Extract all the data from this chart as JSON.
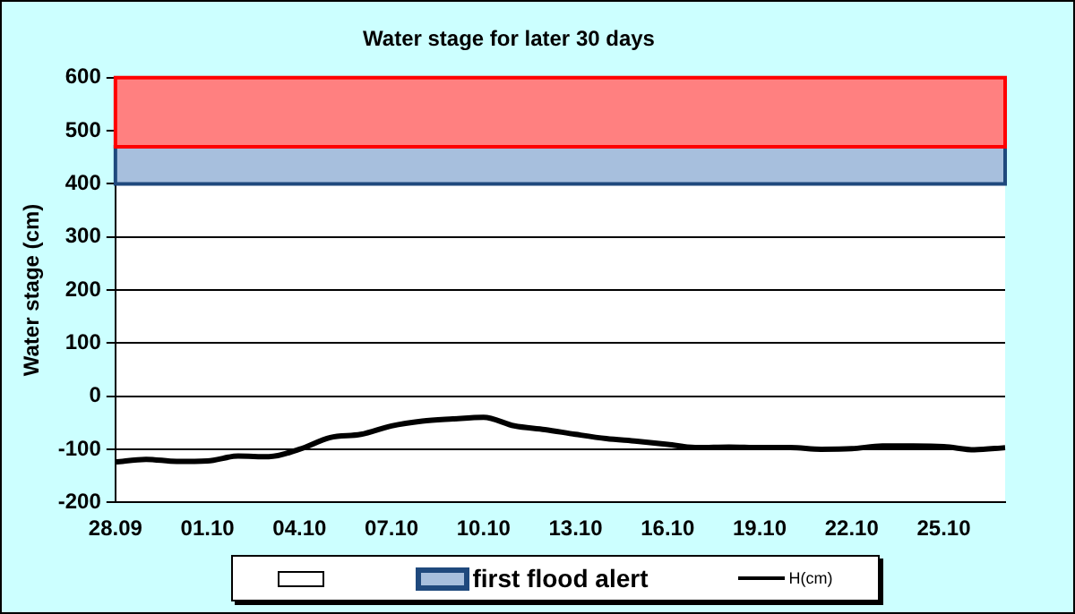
{
  "chart_data": {
    "type": "line",
    "title": "Water stage for later 30 days",
    "ylabel": "Water stage (cm)",
    "categories": [
      "28.09",
      null,
      null,
      "01.10",
      null,
      null,
      "04.10",
      null,
      null,
      "07.10",
      null,
      null,
      "10.10",
      null,
      null,
      "13.10",
      null,
      null,
      "16.10",
      null,
      null,
      "19.10",
      null,
      null,
      "22.10",
      null,
      null,
      "25.10",
      null,
      null
    ],
    "series": [
      {
        "name": "H(cm)",
        "color": "#000000",
        "values": [
          -124,
          -119,
          -123,
          -122,
          -113,
          -114,
          -100,
          -78,
          -72,
          -56,
          -47,
          -43,
          -40,
          -56,
          -63,
          -72,
          -80,
          -85,
          -91,
          -97,
          -96,
          -97,
          -97,
          -100,
          -99,
          -94,
          -94,
          -95,
          -101,
          -97
        ]
      }
    ],
    "ylim": [
      -200,
      600
    ],
    "yticks": [
      -200,
      -100,
      0,
      100,
      200,
      300,
      400,
      500,
      600
    ],
    "bands": [
      {
        "axis": "y",
        "from": 400,
        "to": 470,
        "label": "first flood alert",
        "color": "#a7bfdd"
      },
      {
        "axis": "y",
        "from": 470,
        "to": 600,
        "color": "#ff8080"
      }
    ],
    "grid": "y",
    "legend": "bottom",
    "marker": "none",
    "line_style": "solid"
  }
}
